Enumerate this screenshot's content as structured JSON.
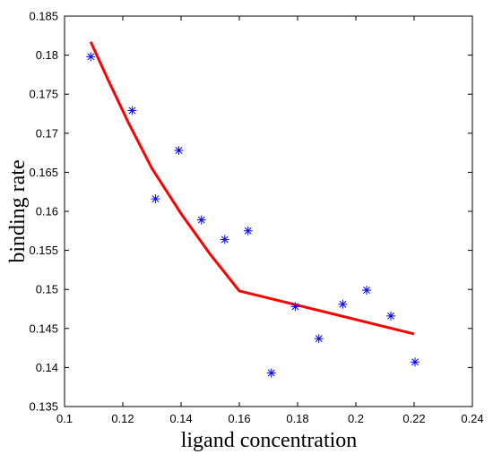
{
  "chart_data": {
    "type": "scatter",
    "xlabel": "ligand concentration",
    "ylabel": "binding rate",
    "xlim": [
      0.1,
      0.24
    ],
    "ylim": [
      0.135,
      0.185
    ],
    "xticks": [
      0.1,
      0.12,
      0.14,
      0.16,
      0.18,
      0.2,
      0.22,
      0.24
    ],
    "xtick_labels": [
      "0.1",
      "0.12",
      "0.14",
      "0.16",
      "0.18",
      "0.2",
      "0.22",
      "0.24"
    ],
    "yticks": [
      0.135,
      0.14,
      0.145,
      0.15,
      0.155,
      0.16,
      0.165,
      0.17,
      0.175,
      0.18,
      0.185
    ],
    "ytick_labels": [
      "0.135",
      "0.14",
      "0.145",
      "0.15",
      "0.155",
      "0.16",
      "0.165",
      "0.17",
      "0.175",
      "0.18",
      "0.185"
    ],
    "grid": false,
    "series": [
      {
        "type": "scatter",
        "marker": "asterisk",
        "color": "#0000ff",
        "x": [
          0.109,
          0.1232,
          0.1312,
          0.1392,
          0.147,
          0.155,
          0.163,
          0.171,
          0.1792,
          0.1873,
          0.1955,
          0.2037,
          0.212,
          0.2203
        ],
        "y": [
          0.1798,
          0.1729,
          0.1616,
          0.1678,
          0.1589,
          0.1564,
          0.1575,
          0.1393,
          0.1478,
          0.1437,
          0.1481,
          0.1499,
          0.1466,
          0.1407
        ]
      },
      {
        "type": "line",
        "color": "#ff0000",
        "x": [
          0.109,
          0.115,
          0.122,
          0.13,
          0.14,
          0.15,
          0.16,
          0.171,
          0.22
        ],
        "y": [
          0.1817,
          0.1768,
          0.1713,
          0.1655,
          0.1597,
          0.1545,
          0.1498,
          0.1488,
          0.1443
        ]
      }
    ]
  }
}
